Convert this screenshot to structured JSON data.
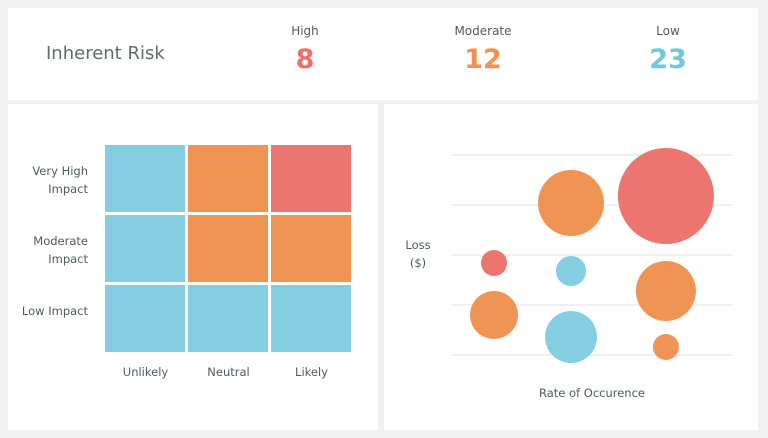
{
  "header": {
    "title": "Inherent Risk",
    "stats": [
      {
        "label": "High",
        "value": 8,
        "color": "#ec6f6c"
      },
      {
        "label": "Moderate",
        "value": 12,
        "color": "#f0924f"
      },
      {
        "label": "Low",
        "value": 23,
        "color": "#72c7dd"
      }
    ]
  },
  "chart_data": [
    {
      "type": "heatmap",
      "rows": [
        "Very High Impact",
        "Moderate Impact",
        "Low Impact"
      ],
      "columns": [
        "Unlikely",
        "Neutral",
        "Likely"
      ],
      "colors": [
        [
          "#85cde0",
          "#ef9455",
          "#ec7570"
        ],
        [
          "#85cde0",
          "#ef9455",
          "#ef9455"
        ],
        [
          "#85cde0",
          "#85cde0",
          "#85cde0"
        ]
      ]
    },
    {
      "type": "scatter",
      "xlabel": "Rate of Occurence",
      "ylabel": "Loss ($)",
      "xlim": [
        0,
        10
      ],
      "ylim": [
        0,
        4
      ],
      "yticks": [
        0,
        1,
        2,
        3,
        4
      ],
      "grid": true,
      "x": [
        4.25,
        7.64,
        1.5,
        4.25,
        7.64,
        1.5,
        4.25,
        7.64
      ],
      "y": [
        3.04,
        3.18,
        1.84,
        1.68,
        1.28,
        0.8,
        0.36,
        0.16
      ],
      "sizes": [
        33,
        48,
        13,
        15,
        30,
        24,
        26,
        13
      ],
      "colors": [
        "#ef9455",
        "#ec7570",
        "#ec7570",
        "#85cde0",
        "#ef9455",
        "#ef9455",
        "#85cde0",
        "#ef9455"
      ]
    }
  ]
}
